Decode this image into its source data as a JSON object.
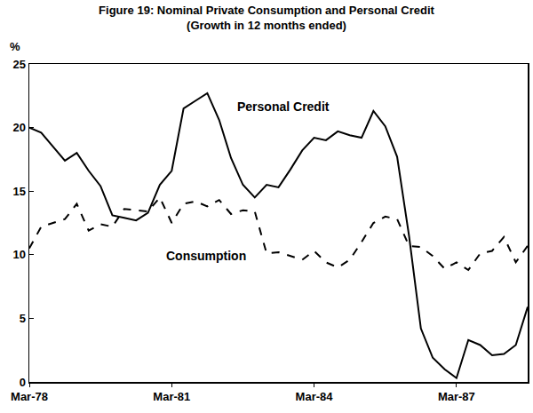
{
  "chart_data": {
    "type": "line",
    "title": "Figure 19: Nominal Private Consumption and Personal Credit",
    "subtitle": "(Growth in 12 months ended)",
    "y_label": "%",
    "categories": [
      "Mar-78",
      null,
      null,
      null,
      null,
      null,
      null,
      null,
      null,
      null,
      null,
      null,
      "Mar-81",
      null,
      null,
      null,
      null,
      null,
      null,
      null,
      null,
      null,
      null,
      null,
      "Mar-84",
      null,
      null,
      null,
      null,
      null,
      null,
      null,
      null,
      null,
      null,
      null,
      "Mar-87",
      null,
      null,
      null,
      null,
      null,
      null
    ],
    "series": [
      {
        "name": "Personal Credit",
        "color": "#000000",
        "line_style": "solid",
        "values": [
          20.0,
          19.6,
          18.5,
          17.4,
          18.0,
          16.6,
          15.4,
          13.1,
          12.9,
          12.7,
          13.3,
          15.5,
          16.6,
          21.5,
          22.1,
          22.7,
          20.6,
          17.6,
          15.5,
          14.5,
          15.5,
          15.3,
          16.7,
          18.2,
          19.2,
          19.0,
          19.7,
          19.4,
          19.2,
          21.3,
          20.1,
          17.7,
          11.5,
          4.2,
          1.9,
          1.0,
          0.3,
          3.3,
          2.9,
          2.1,
          2.2,
          2.9,
          5.9
        ]
      },
      {
        "name": "Consumption",
        "color": "#000000",
        "line_style": "dash",
        "values": [
          10.5,
          12.2,
          12.5,
          12.8,
          14.0,
          11.9,
          12.4,
          12.2,
          13.6,
          13.5,
          13.4,
          14.5,
          12.5,
          14.0,
          14.2,
          13.8,
          14.3,
          13.2,
          13.5,
          13.4,
          10.1,
          10.2,
          9.9,
          9.6,
          10.3,
          9.4,
          9.0,
          9.6,
          11.0,
          12.5,
          13.0,
          12.8,
          10.7,
          10.6,
          9.9,
          8.9,
          9.4,
          8.8,
          10.1,
          10.3,
          11.4,
          9.4,
          10.7
        ]
      }
    ],
    "ylim": [
      0,
      25
    ],
    "yticks": [
      0,
      5,
      10,
      15,
      20,
      25
    ],
    "grid": false
  }
}
